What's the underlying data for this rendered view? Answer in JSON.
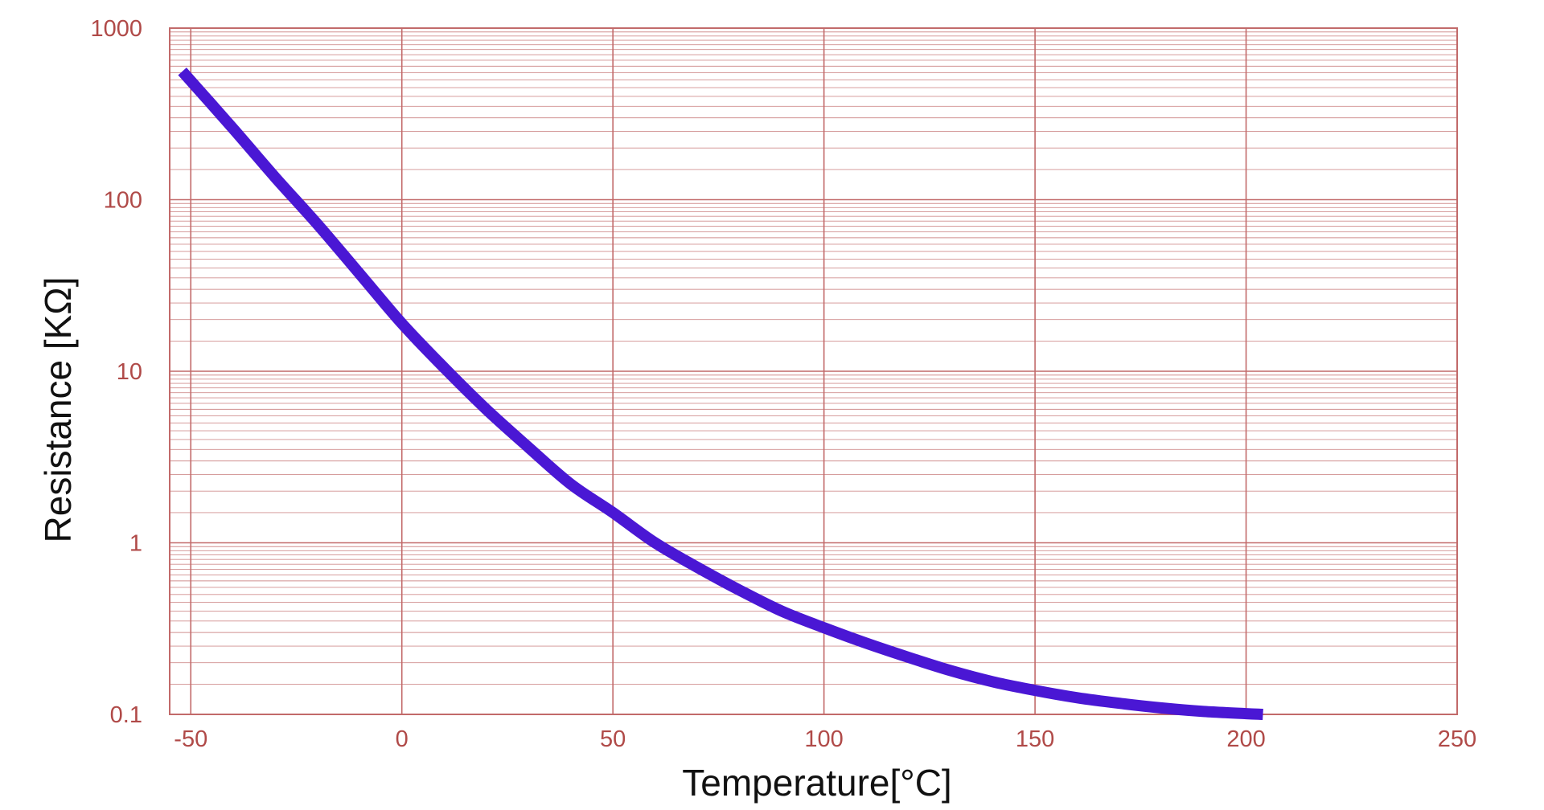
{
  "chart_data": {
    "type": "line",
    "title": "",
    "xlabel": "Temperature[°C]",
    "ylabel": "Resistance [KΩ]",
    "xscale": "linear",
    "yscale": "log",
    "xlim": [
      -55,
      250
    ],
    "ylim": [
      0.1,
      1000
    ],
    "x_ticks": [
      -50,
      0,
      50,
      100,
      150,
      200,
      250
    ],
    "x_tick_labels": [
      "-50",
      "0",
      "50",
      "100",
      "150",
      "200",
      "250"
    ],
    "y_ticks": [
      0.1,
      1,
      10,
      100,
      1000
    ],
    "y_tick_labels": [
      "0.1",
      "1",
      "10",
      "100",
      "1000"
    ],
    "grid": true,
    "grid_color": "#c26a6a",
    "tick_label_color": "#b04a48",
    "series": [
      {
        "color": "#4a17d4",
        "x": [
          -52,
          -40,
          -30,
          -20,
          -10,
          0,
          10,
          20,
          30,
          40,
          50,
          60,
          70,
          80,
          90,
          100,
          110,
          120,
          130,
          140,
          150,
          160,
          170,
          180,
          190,
          200,
          204
        ],
        "y": [
          560,
          260,
          135,
          72,
          37,
          19,
          10.5,
          6.0,
          3.6,
          2.2,
          1.5,
          1.0,
          0.72,
          0.53,
          0.4,
          0.32,
          0.26,
          0.215,
          0.18,
          0.155,
          0.138,
          0.125,
          0.116,
          0.109,
          0.104,
          0.101,
          0.1
        ]
      }
    ]
  }
}
